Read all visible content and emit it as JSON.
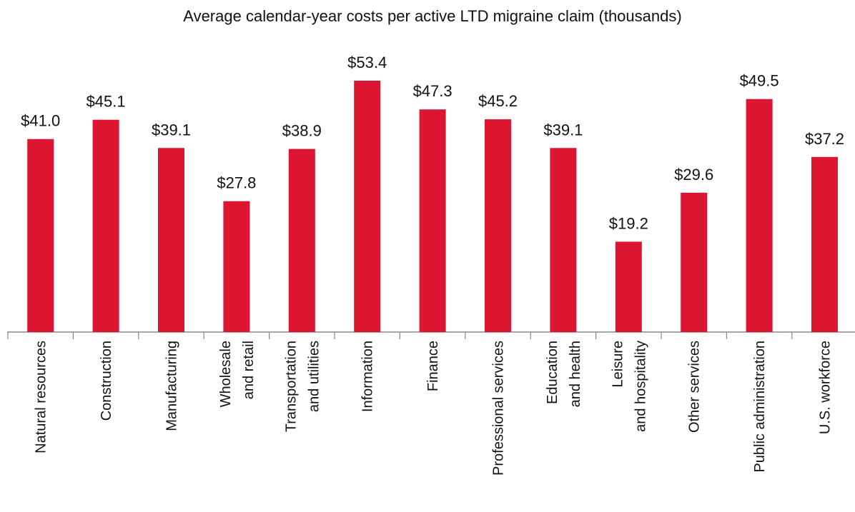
{
  "chart_data": {
    "type": "bar",
    "title": "Average calendar-year costs per active LTD migraine claim (thousands)",
    "categories": [
      [
        "Natural resources"
      ],
      [
        "Construction"
      ],
      [
        "Manufacturing"
      ],
      [
        "Wholesale",
        "and retail"
      ],
      [
        "Transportation",
        "and utilities"
      ],
      [
        "Information"
      ],
      [
        "Finance"
      ],
      [
        "Professional services"
      ],
      [
        "Education",
        "and health"
      ],
      [
        "Leisure",
        "and hospitality"
      ],
      [
        "Other services"
      ],
      [
        "Public administration"
      ],
      [
        "U.S. workforce"
      ]
    ],
    "values": [
      41.0,
      45.1,
      39.1,
      27.8,
      38.9,
      53.4,
      47.3,
      45.2,
      39.1,
      19.2,
      29.6,
      49.5,
      37.2
    ],
    "value_labels": [
      "$41.0",
      "$45.1",
      "$39.1",
      "$27.8",
      "$38.9",
      "$53.4",
      "$47.3",
      "$45.2",
      "$39.1",
      "$19.2",
      "$29.6",
      "$49.5",
      "$37.2"
    ],
    "color": "#dc1530"
  }
}
